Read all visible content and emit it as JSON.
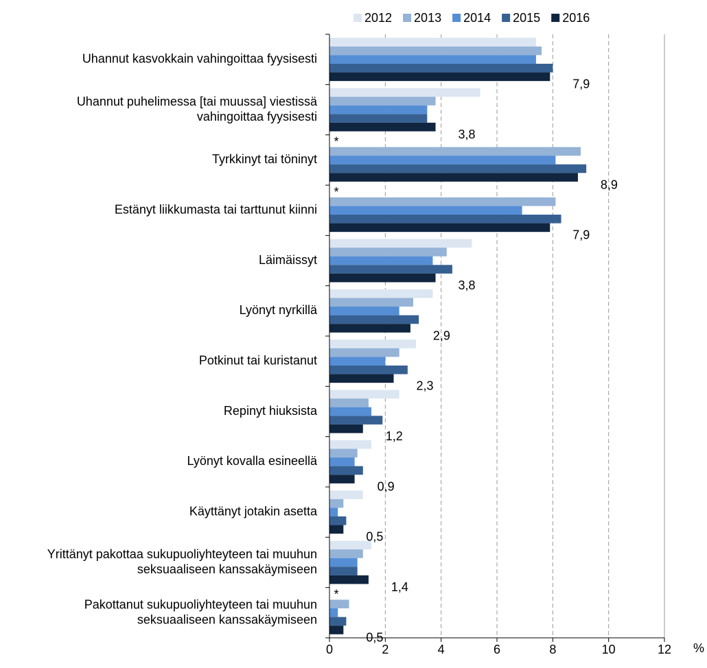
{
  "chart_data": {
    "type": "hbar",
    "categories": [
      "Uhannut kasvokkain vahingoittaa fyysisesti",
      "Uhannut puhelimessa [tai muussa] viestissä\nvahingoittaa fyysisesti",
      "Tyrkkinyt tai töninyt",
      "Estänyt liikkumasta tai tarttunut kiinni",
      "Läimäissyt",
      "Lyönyt nyrkillä",
      "Potkinut tai kuristanut",
      "Repinyt hiuksista",
      "Lyönyt kovalla esineellä",
      "Käyttänyt jotakin asetta",
      "Yrittänyt pakottaa sukupuoliyhteyteen tai muuhun\nseksuaaliseen kanssakäymiseen",
      "Pakottanut sukupuoliyhteyteen tai muuhun\nseksuaaliseen kanssakäymiseen"
    ],
    "series": [
      {
        "name": "2012",
        "color": "#dce6f2",
        "values": [
          7.4,
          5.4,
          null,
          null,
          5.1,
          3.7,
          3.1,
          2.5,
          1.5,
          1.2,
          1.5,
          null
        ],
        "value_labels": [
          null,
          null,
          "*",
          "*",
          null,
          null,
          null,
          null,
          null,
          null,
          null,
          "*"
        ]
      },
      {
        "name": "2013",
        "color": "#95b3d7",
        "values": [
          7.6,
          3.8,
          9.0,
          8.1,
          4.2,
          3.0,
          2.5,
          1.4,
          1.0,
          0.5,
          1.2,
          0.7
        ]
      },
      {
        "name": "2014",
        "color": "#558ed5",
        "values": [
          7.4,
          3.5,
          8.1,
          6.9,
          3.7,
          2.5,
          2.0,
          1.5,
          0.9,
          0.3,
          1.0,
          0.3
        ]
      },
      {
        "name": "2015",
        "color": "#376092",
        "values": [
          8.0,
          3.5,
          9.2,
          8.3,
          4.4,
          3.2,
          2.8,
          1.9,
          1.2,
          0.6,
          1.0,
          0.6
        ]
      },
      {
        "name": "2016",
        "color": "#10253f",
        "values": [
          7.9,
          3.8,
          8.9,
          7.9,
          3.8,
          2.9,
          2.3,
          1.2,
          0.9,
          0.5,
          1.4,
          0.5
        ],
        "value_labels": [
          "7,9",
          "3,8",
          "8,9",
          "7,9",
          "3,8",
          "2,9",
          "2,3",
          "1,2",
          "0,9",
          "0,5",
          "1,4",
          "0,5"
        ]
      }
    ],
    "xlabel": "%",
    "xlim": [
      0,
      12
    ],
    "xticks": [
      0,
      2,
      4,
      6,
      8,
      10,
      12
    ],
    "grid": true,
    "legend": "top"
  }
}
